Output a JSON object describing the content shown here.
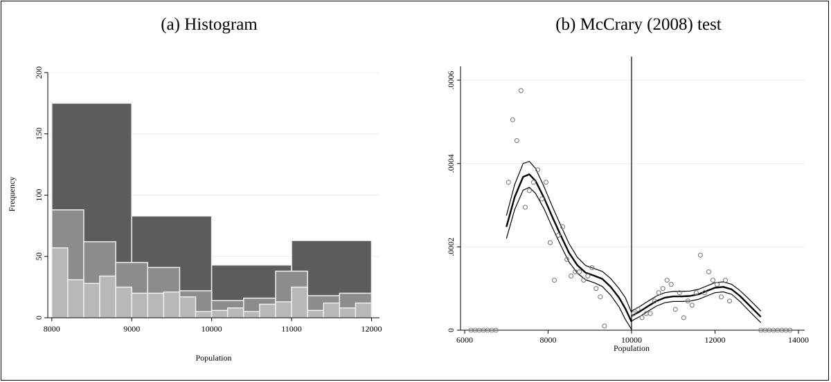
{
  "colors": {
    "background": "#ffffff",
    "grid": "#ececec",
    "bar_dark": "#5c5c5c",
    "bar_mid": "#8c8c8c",
    "bar_light": "#b8b8b8",
    "bar_edge": "#f0f0f0",
    "axis": "#000000",
    "marker": "#7a7a7a"
  },
  "chart_data": [
    {
      "type": "bar",
      "title": "(a) Histogram",
      "xlabel": "Population",
      "ylabel": "Frequency",
      "xlim": [
        7950,
        12100
      ],
      "ylim": [
        0,
        200
      ],
      "xticks": [
        8000,
        9000,
        10000,
        11000,
        12000
      ],
      "yticks": [
        0,
        50,
        100,
        150,
        200
      ],
      "grid": true,
      "series": [
        {
          "bins": [
            [
              8000,
              9000,
              175
            ],
            [
              9000,
              10000,
              83
            ],
            [
              10000,
              11000,
              43
            ],
            [
              11000,
              12000,
              63
            ]
          ]
        },
        {
          "bins": [
            [
              8000,
              8400,
              88
            ],
            [
              8400,
              8800,
              62
            ],
            [
              8800,
              9200,
              45
            ],
            [
              9200,
              9600,
              41
            ],
            [
              9600,
              10000,
              22
            ],
            [
              10000,
              10400,
              14
            ],
            [
              10400,
              10800,
              16
            ],
            [
              10800,
              11200,
              38
            ],
            [
              11200,
              11600,
              18
            ],
            [
              11600,
              12000,
              20
            ]
          ]
        },
        {
          "bins": [
            [
              8000,
              8200,
              57
            ],
            [
              8200,
              8400,
              31
            ],
            [
              8400,
              8600,
              28
            ],
            [
              8600,
              8800,
              34
            ],
            [
              8800,
              9000,
              25
            ],
            [
              9000,
              9200,
              20
            ],
            [
              9200,
              9400,
              20
            ],
            [
              9400,
              9600,
              21
            ],
            [
              9600,
              9800,
              17
            ],
            [
              9800,
              10000,
              5
            ],
            [
              10000,
              10200,
              6
            ],
            [
              10200,
              10400,
              8
            ],
            [
              10400,
              10600,
              5
            ],
            [
              10600,
              10800,
              11
            ],
            [
              10800,
              11000,
              13
            ],
            [
              11000,
              11200,
              25
            ],
            [
              11200,
              11400,
              6
            ],
            [
              11400,
              11600,
              12
            ],
            [
              11600,
              11800,
              8
            ],
            [
              11800,
              12000,
              12
            ]
          ]
        }
      ]
    },
    {
      "type": "scatter",
      "title": "(b) McCrary (2008) test",
      "xlabel": "Population",
      "xlim": [
        5900,
        14150
      ],
      "ylim": [
        0,
        0.00062
      ],
      "xticks": [
        6000,
        8000,
        10000,
        12000,
        14000
      ],
      "xtick_labels": [
        "6000",
        "8000",
        "10000",
        "12000",
        "14000"
      ],
      "yticks": [
        0,
        0.0002,
        0.0004,
        0.0006
      ],
      "ytick_labels": [
        "0",
        ".0002",
        ".0004",
        ".0006"
      ],
      "grid": true,
      "cutoff": 10000,
      "points": [
        [
          6150,
          0
        ],
        [
          6250,
          0
        ],
        [
          6350,
          0
        ],
        [
          6450,
          0
        ],
        [
          6550,
          0
        ],
        [
          6650,
          0
        ],
        [
          6750,
          0
        ],
        [
          7050,
          0.000355
        ],
        [
          7150,
          0.000505
        ],
        [
          7250,
          0.000455
        ],
        [
          7350,
          0.000575
        ],
        [
          7450,
          0.000295
        ],
        [
          7550,
          0.000335
        ],
        [
          7650,
          0.000355
        ],
        [
          7750,
          0.000385
        ],
        [
          7850,
          0.000315
        ],
        [
          7950,
          0.000355
        ],
        [
          8050,
          0.00021
        ],
        [
          8150,
          0.00012
        ],
        [
          8250,
          0.000228
        ],
        [
          8350,
          0.000248
        ],
        [
          8450,
          0.00017
        ],
        [
          8550,
          0.00013
        ],
        [
          8650,
          0.00014
        ],
        [
          8750,
          0.00014
        ],
        [
          8850,
          0.00012
        ],
        [
          8950,
          0.00013
        ],
        [
          9050,
          0.00015
        ],
        [
          9150,
          0.0001
        ],
        [
          9250,
          8e-05
        ],
        [
          9350,
          1e-05
        ],
        [
          10050,
          4e-05
        ],
        [
          10150,
          5e-05
        ],
        [
          10250,
          3e-05
        ],
        [
          10350,
          4e-05
        ],
        [
          10450,
          4e-05
        ],
        [
          10550,
          7e-05
        ],
        [
          10650,
          9e-05
        ],
        [
          10750,
          0.0001
        ],
        [
          10850,
          0.00012
        ],
        [
          10950,
          0.00011
        ],
        [
          11050,
          5e-05
        ],
        [
          11150,
          9e-05
        ],
        [
          11250,
          3e-05
        ],
        [
          11350,
          7e-05
        ],
        [
          11450,
          6e-05
        ],
        [
          11550,
          9e-05
        ],
        [
          11650,
          0.00018
        ],
        [
          11750,
          9e-05
        ],
        [
          11850,
          0.00014
        ],
        [
          11950,
          0.00012
        ],
        [
          12050,
          0.00011
        ],
        [
          12150,
          8e-05
        ],
        [
          12250,
          0.00012
        ],
        [
          12350,
          7e-05
        ],
        [
          13100,
          0
        ],
        [
          13200,
          0
        ],
        [
          13300,
          0
        ],
        [
          13400,
          0
        ],
        [
          13500,
          0
        ],
        [
          13600,
          0
        ],
        [
          13700,
          0
        ],
        [
          13800,
          0
        ]
      ],
      "fit_left": {
        "x": [
          7000,
          7200,
          7400,
          7550,
          7700,
          7900,
          8100,
          8300,
          8500,
          8700,
          8900,
          9100,
          9300,
          9500,
          9700,
          9850,
          10000
        ],
        "y": [
          0.000248,
          0.00032,
          0.000368,
          0.000374,
          0.000358,
          0.000318,
          0.000272,
          0.000228,
          0.000186,
          0.000156,
          0.000138,
          0.000131,
          0.000123,
          0.000104,
          7.8e-05,
          5.2e-05,
          2e-05
        ],
        "upper": [
          0.000275,
          0.00035,
          0.0004,
          0.000405,
          0.000388,
          0.000345,
          0.000297,
          0.000252,
          0.000208,
          0.000175,
          0.000155,
          0.000148,
          0.000141,
          0.000124,
          0.0001,
          7.8e-05,
          4.2e-05
        ],
        "lower": [
          0.00022,
          0.00029,
          0.000336,
          0.000343,
          0.000328,
          0.000292,
          0.000247,
          0.000204,
          0.000164,
          0.000137,
          0.000121,
          0.000114,
          0.000105,
          8.4e-05,
          5.6e-05,
          2.6e-05,
          2e-06
        ]
      },
      "fit_right": {
        "x": [
          10000,
          10200,
          10400,
          10600,
          10800,
          11000,
          11200,
          11400,
          11600,
          11800,
          12000,
          12200,
          12400,
          12600,
          12800,
          13000,
          13100
        ],
        "y": [
          3.4e-05,
          4.5e-05,
          5.8e-05,
          7e-05,
          7.8e-05,
          8.1e-05,
          8.1e-05,
          8.2e-05,
          8.6e-05,
          9.4e-05,
          0.000102,
          0.000104,
          9.8e-05,
          8.2e-05,
          6.2e-05,
          4.2e-05,
          3.2e-05
        ],
        "upper": [
          4.6e-05,
          5.7e-05,
          7e-05,
          8.2e-05,
          9e-05,
          9.3e-05,
          9.3e-05,
          9.4e-05,
          9.8e-05,
          0.000106,
          0.000114,
          0.000116,
          0.00011,
          9.5e-05,
          7.6e-05,
          5.6e-05,
          4.6e-05
        ],
        "lower": [
          2.2e-05,
          3.3e-05,
          4.6e-05,
          5.8e-05,
          6.6e-05,
          6.9e-05,
          6.9e-05,
          7e-05,
          7.4e-05,
          8.2e-05,
          9e-05,
          9.2e-05,
          8.6e-05,
          6.9e-05,
          4.8e-05,
          2.8e-05,
          1.8e-05
        ]
      }
    }
  ]
}
